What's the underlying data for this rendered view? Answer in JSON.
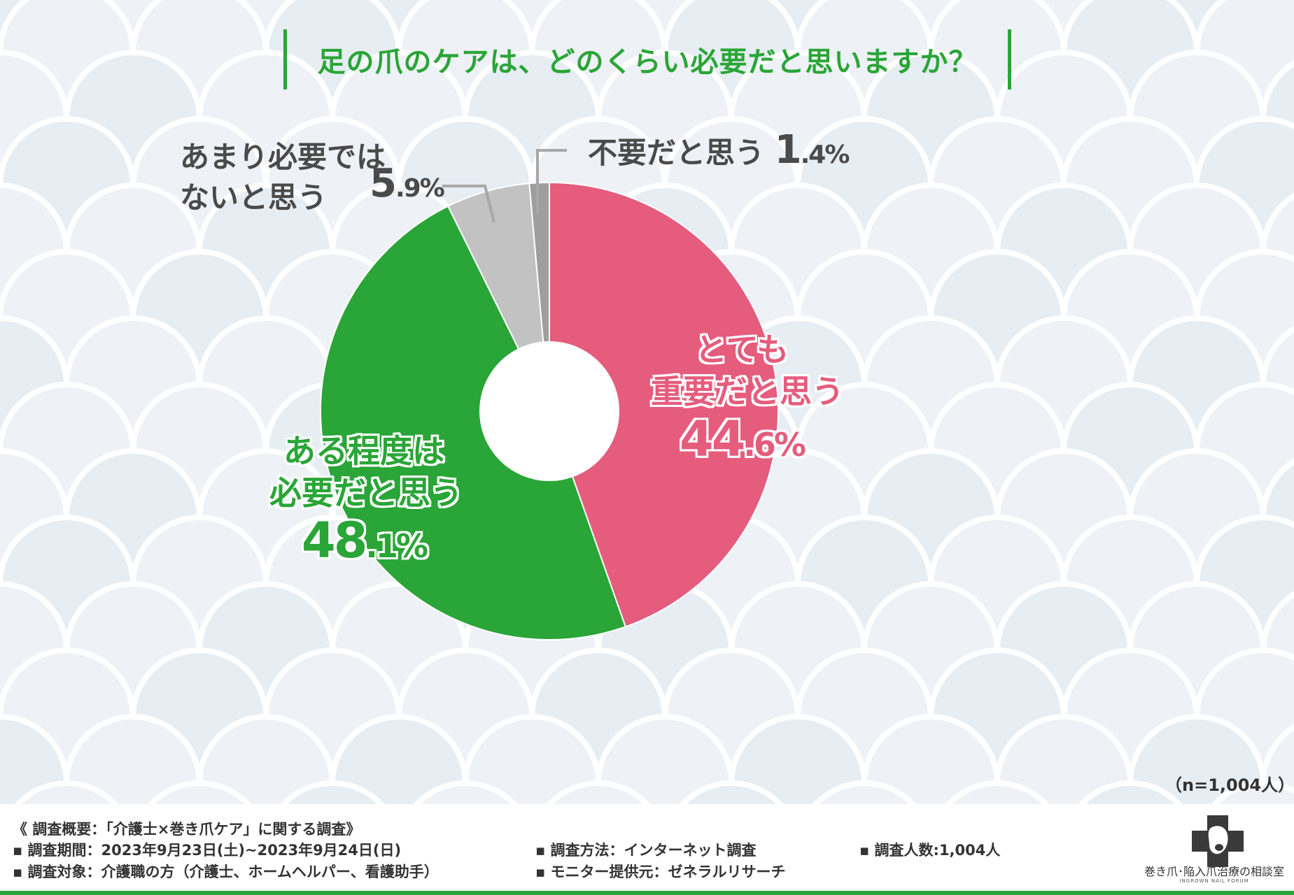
{
  "title": "足の爪のケアは、どのくらい必要だと思いますか？",
  "sample_size": "（n=1,004人）",
  "colors": {
    "very_important": "#e55c7d",
    "somewhat_needed": "#2aa537",
    "not_very_needed": "#c2c2c2",
    "unnecessary": "#9e9e9e",
    "accent": "#2aa537"
  },
  "labels": {
    "unnecessary": "不要だと思う",
    "unnecessary_pct_int": "1",
    "unnecessary_pct_dec": ".4%",
    "not_very_line1": "あまり必要では",
    "not_very_line2": "ないと思う",
    "not_very_pct_int": "5",
    "not_very_pct_dec": ".9%",
    "very_line1": "とても",
    "very_line2": "重要だと思う",
    "very_pct_int": "44",
    "very_pct_dec": ".6%",
    "somewhat_line1": "ある程度は",
    "somewhat_line2": "必要だと思う",
    "somewhat_pct_int": "48",
    "somewhat_pct_dec": ".1%"
  },
  "chart_data": {
    "type": "pie",
    "title": "足の爪のケアは、どのくらい必要だと思いますか？",
    "unit": "%",
    "donut": true,
    "categories": [
      "とても重要だと思う",
      "ある程度は必要だと思う",
      "あまり必要ではないと思う",
      "不要だと思う"
    ],
    "values": [
      44.6,
      48.1,
      5.9,
      1.4
    ]
  },
  "footer": {
    "heading": "《 調査概要：「介護士×巻き爪ケア」に関する調査》",
    "period": "▪ 調査期間：2023年9月23日(土)~2023年9月24日(日)",
    "method": "▪ 調査方法：インターネット調査",
    "count": "▪ 調査人数:1,004人",
    "target": "▪ 調査対象：介護職の方（介護士、ホームヘルパー、看護助手）",
    "provider": "▪ モニター提供元：ゼネラルリサーチ"
  },
  "logo": {
    "name": "巻き爪･陥入爪治療の相談室",
    "subtitle": "INGROWN NAIL FORUM"
  }
}
